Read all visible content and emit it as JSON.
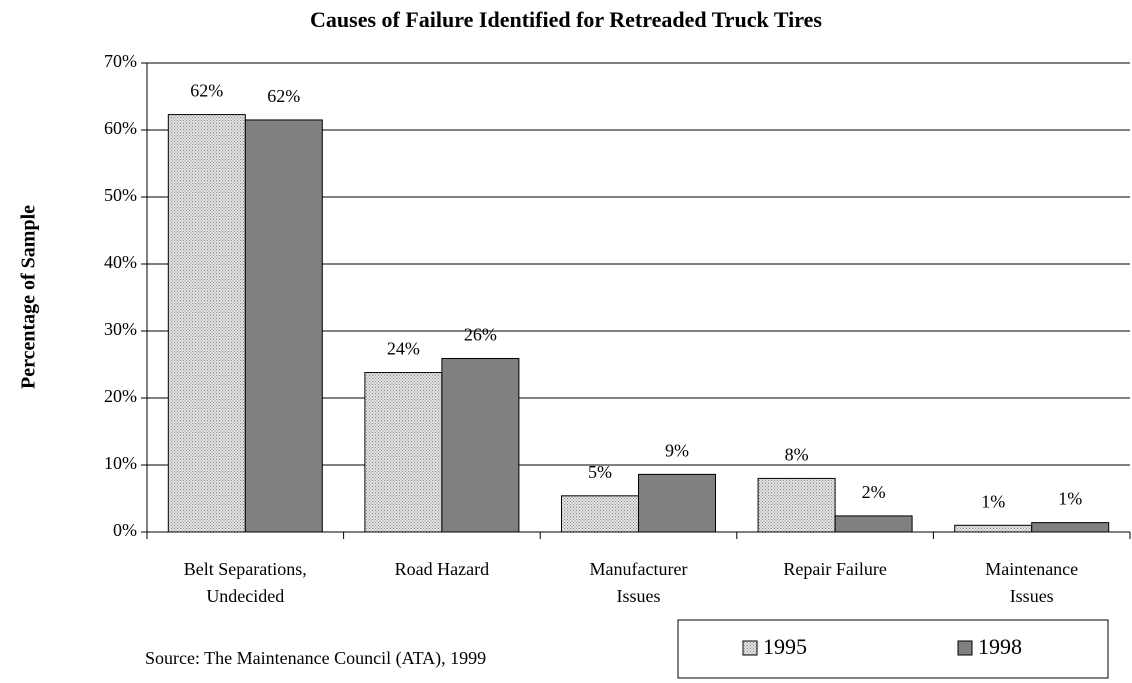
{
  "chart_data": {
    "type": "bar",
    "title": "Causes of Failure Identified for Retreaded Truck Tires",
    "y_label": "Percentage of Sample",
    "source": "Source: The Maintenance Council (ATA), 1999",
    "categories": [
      "Belt Separations,\nUndecided",
      "Road Hazard",
      "Manufacturer\nIssues",
      "Repair Failure",
      "Maintenance\nIssues"
    ],
    "series": [
      {
        "name": "1995",
        "color": "#e4e4e4",
        "pattern": "dotted",
        "values": [
          62.3,
          23.8,
          5.4,
          8,
          1
        ],
        "value_labels": [
          "62%",
          "24%",
          "5%",
          "8%",
          "1%"
        ]
      },
      {
        "name": "1998",
        "color": "#808080",
        "values": [
          61.5,
          25.9,
          8.6,
          2.4,
          1.4
        ],
        "value_labels": [
          "62%",
          "26%",
          "9%",
          "2%",
          "1%"
        ]
      }
    ],
    "ylim": [
      0,
      70
    ],
    "yticks": [
      {
        "value": 0,
        "label": "0%"
      },
      {
        "value": 10,
        "label": "10%"
      },
      {
        "value": 20,
        "label": "20%"
      },
      {
        "value": 30,
        "label": "30%"
      },
      {
        "value": 40,
        "label": "40%"
      },
      {
        "value": 50,
        "label": "50%"
      },
      {
        "value": 60,
        "label": "60%"
      },
      {
        "value": 70,
        "label": "70%"
      }
    ],
    "grid": true
  }
}
